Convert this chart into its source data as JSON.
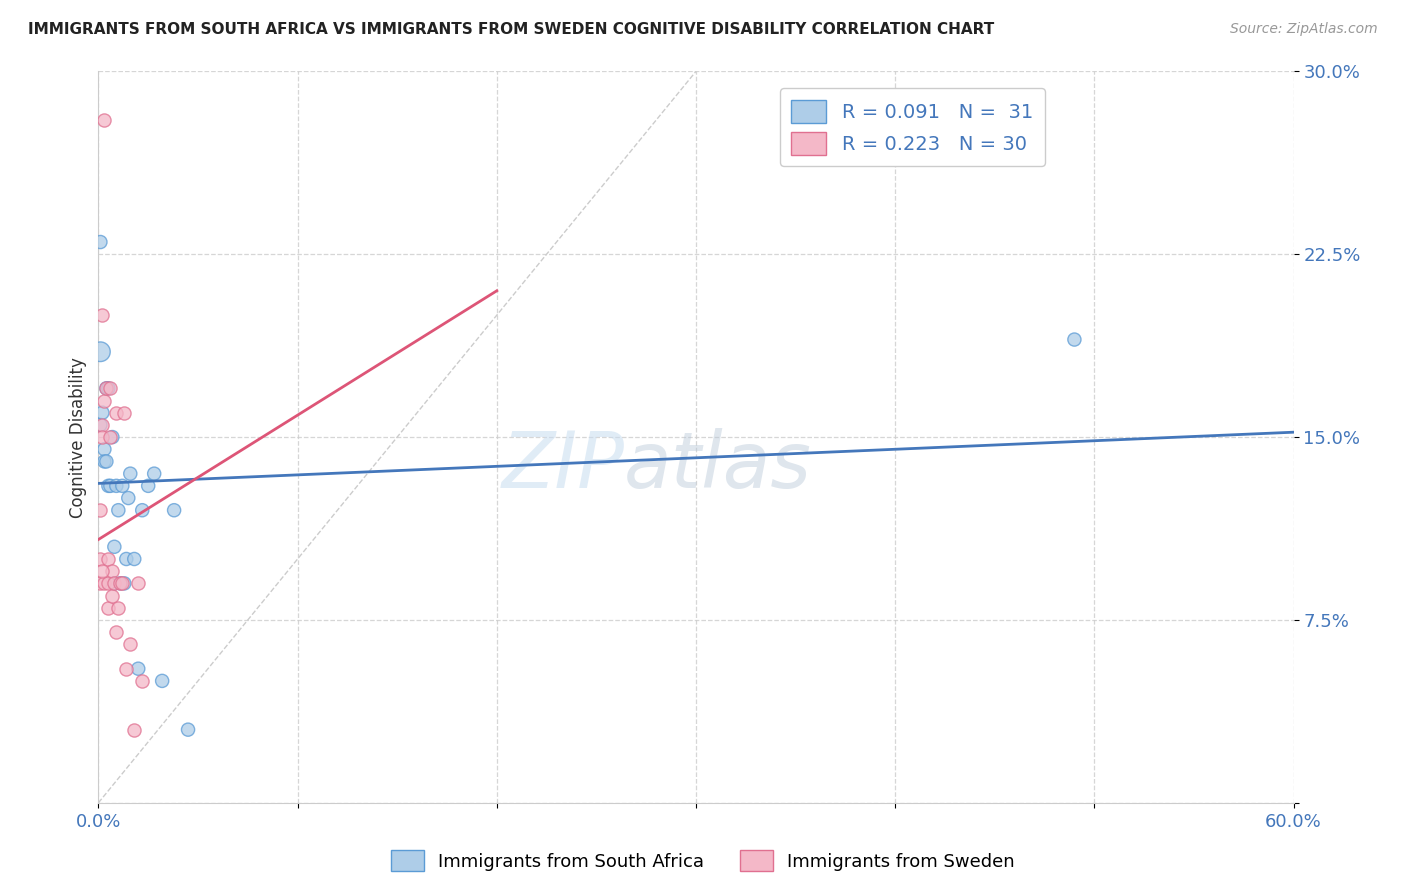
{
  "title": "IMMIGRANTS FROM SOUTH AFRICA VS IMMIGRANTS FROM SWEDEN COGNITIVE DISABILITY CORRELATION CHART",
  "source": "Source: ZipAtlas.com",
  "ylabel": "Cognitive Disability",
  "x_min": 0.0,
  "x_max": 0.6,
  "y_min": 0.0,
  "y_max": 0.3,
  "x_ticks": [
    0.0,
    0.1,
    0.2,
    0.3,
    0.4,
    0.5,
    0.6
  ],
  "x_tick_labels": [
    "0.0%",
    "",
    "",
    "",
    "",
    "",
    "60.0%"
  ],
  "y_ticks": [
    0.0,
    0.075,
    0.15,
    0.225,
    0.3
  ],
  "y_tick_labels": [
    "",
    "7.5%",
    "15.0%",
    "22.5%",
    "30.0%"
  ],
  "blue_color": "#aecde8",
  "blue_edge_color": "#5b9bd5",
  "pink_color": "#f4b8c8",
  "pink_edge_color": "#e07090",
  "blue_line_color": "#4477bb",
  "pink_line_color": "#dd5577",
  "watermark_zip": "ZIP",
  "watermark_atlas": "atlas",
  "legend_label1": "R = 0.091   N =  31",
  "legend_label2": "R = 0.223   N = 30",
  "south_africa_x": [
    0.001,
    0.001,
    0.002,
    0.003,
    0.003,
    0.004,
    0.004,
    0.005,
    0.005,
    0.006,
    0.007,
    0.008,
    0.008,
    0.009,
    0.01,
    0.011,
    0.012,
    0.013,
    0.014,
    0.015,
    0.016,
    0.018,
    0.02,
    0.022,
    0.025,
    0.028,
    0.032,
    0.038,
    0.045,
    0.49,
    0.001
  ],
  "south_africa_y": [
    0.185,
    0.155,
    0.16,
    0.145,
    0.14,
    0.17,
    0.14,
    0.13,
    0.17,
    0.13,
    0.15,
    0.105,
    0.09,
    0.13,
    0.12,
    0.09,
    0.13,
    0.09,
    0.1,
    0.125,
    0.135,
    0.1,
    0.055,
    0.12,
    0.13,
    0.135,
    0.05,
    0.12,
    0.03,
    0.19,
    0.23
  ],
  "south_africa_sizes": [
    200,
    90,
    90,
    90,
    90,
    90,
    90,
    90,
    90,
    90,
    90,
    90,
    90,
    90,
    90,
    90,
    90,
    90,
    90,
    90,
    90,
    90,
    90,
    90,
    90,
    90,
    90,
    90,
    90,
    90,
    90
  ],
  "sweden_x": [
    0.001,
    0.001,
    0.001,
    0.002,
    0.002,
    0.003,
    0.003,
    0.004,
    0.005,
    0.005,
    0.005,
    0.006,
    0.006,
    0.007,
    0.007,
    0.008,
    0.009,
    0.009,
    0.01,
    0.011,
    0.012,
    0.013,
    0.014,
    0.016,
    0.018,
    0.02,
    0.022,
    0.003,
    0.002,
    0.002
  ],
  "sweden_y": [
    0.12,
    0.1,
    0.09,
    0.155,
    0.15,
    0.165,
    0.09,
    0.17,
    0.09,
    0.1,
    0.08,
    0.17,
    0.15,
    0.095,
    0.085,
    0.09,
    0.16,
    0.07,
    0.08,
    0.09,
    0.09,
    0.16,
    0.055,
    0.065,
    0.03,
    0.09,
    0.05,
    0.28,
    0.2,
    0.095
  ],
  "blue_trend_x": [
    0.0,
    0.6
  ],
  "blue_trend_y": [
    0.131,
    0.152
  ],
  "pink_trend_x": [
    0.0,
    0.2
  ],
  "pink_trend_y": [
    0.108,
    0.21
  ],
  "diag_line_x": [
    0.0,
    0.3
  ],
  "diag_line_y": [
    0.0,
    0.3
  ]
}
